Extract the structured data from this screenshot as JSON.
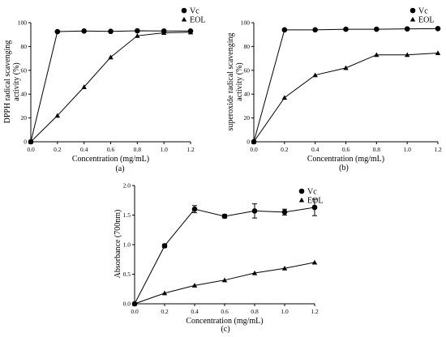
{
  "chart_data": [
    {
      "panel": "(a)",
      "type": "line",
      "x": [
        0,
        0.2,
        0.4,
        0.6,
        0.8,
        1.0,
        1.2
      ],
      "xlabel": "Concentration (mg/mL)",
      "ylabel": "DPPH radical scavenging activity (%)",
      "xlim": [
        0,
        1.2
      ],
      "ylim": [
        0,
        100
      ],
      "xticks": [
        "0.0",
        "0.2",
        "0.4",
        "0.6",
        "0.8",
        "1.0",
        "1.2"
      ],
      "yticks": [
        "0",
        "20",
        "40",
        "60",
        "80",
        "100"
      ],
      "grid": false,
      "legend_position": "top-right",
      "series": [
        {
          "name": "Vc",
          "marker": "circle",
          "values": [
            0,
            92.5,
            93,
            92.7,
            93.2,
            93,
            93
          ]
        },
        {
          "name": "EOL",
          "marker": "triangle",
          "values": [
            0,
            22,
            46,
            71,
            89,
            91.5,
            92
          ]
        }
      ]
    },
    {
      "panel": "(b)",
      "type": "line",
      "x": [
        0,
        0.2,
        0.4,
        0.6,
        0.8,
        1.0,
        1.2
      ],
      "xlabel": "Concentration (mg/mL)",
      "ylabel": "superoxide radical scavenging activity (%)",
      "xlim": [
        0,
        1.2
      ],
      "ylim": [
        0,
        100
      ],
      "xticks": [
        "0.0",
        "0.2",
        "0.4",
        "0.6",
        "0.8",
        "1.0",
        "1.2"
      ],
      "yticks": [
        "0",
        "20",
        "40",
        "60",
        "80",
        "100"
      ],
      "grid": false,
      "legend_position": "top-right",
      "series": [
        {
          "name": "Vc",
          "marker": "circle",
          "values": [
            0,
            94,
            94,
            94.5,
            94.5,
            94.8,
            95
          ]
        },
        {
          "name": "EOL",
          "marker": "triangle",
          "values": [
            0,
            37,
            56,
            62,
            73,
            73,
            74.5
          ]
        }
      ]
    },
    {
      "panel": "(c)",
      "type": "line",
      "x": [
        0,
        0.2,
        0.4,
        0.6,
        0.8,
        1.0,
        1.2
      ],
      "xlabel": "Concentration (mg/mL)",
      "ylabel": "Absorbance (700nm)",
      "xlim": [
        0,
        1.2
      ],
      "ylim": [
        0,
        2.0
      ],
      "xticks": [
        "0.0",
        "0.2",
        "0.4",
        "0.6",
        "0.8",
        "1.0",
        "1.2"
      ],
      "yticks": [
        "0.0",
        "0.5",
        "1.0",
        "1.5",
        "2.0"
      ],
      "grid": false,
      "legend_position": "top-right",
      "series": [
        {
          "name": "Vc",
          "marker": "circle",
          "values": [
            0,
            0.98,
            1.6,
            1.48,
            1.57,
            1.55,
            1.63
          ],
          "errors": [
            0,
            0.03,
            0.06,
            0.03,
            0.12,
            0.05,
            0.14
          ]
        },
        {
          "name": "EOL",
          "marker": "triangle",
          "values": [
            0,
            0.18,
            0.31,
            0.4,
            0.52,
            0.6,
            0.7
          ]
        }
      ]
    }
  ]
}
